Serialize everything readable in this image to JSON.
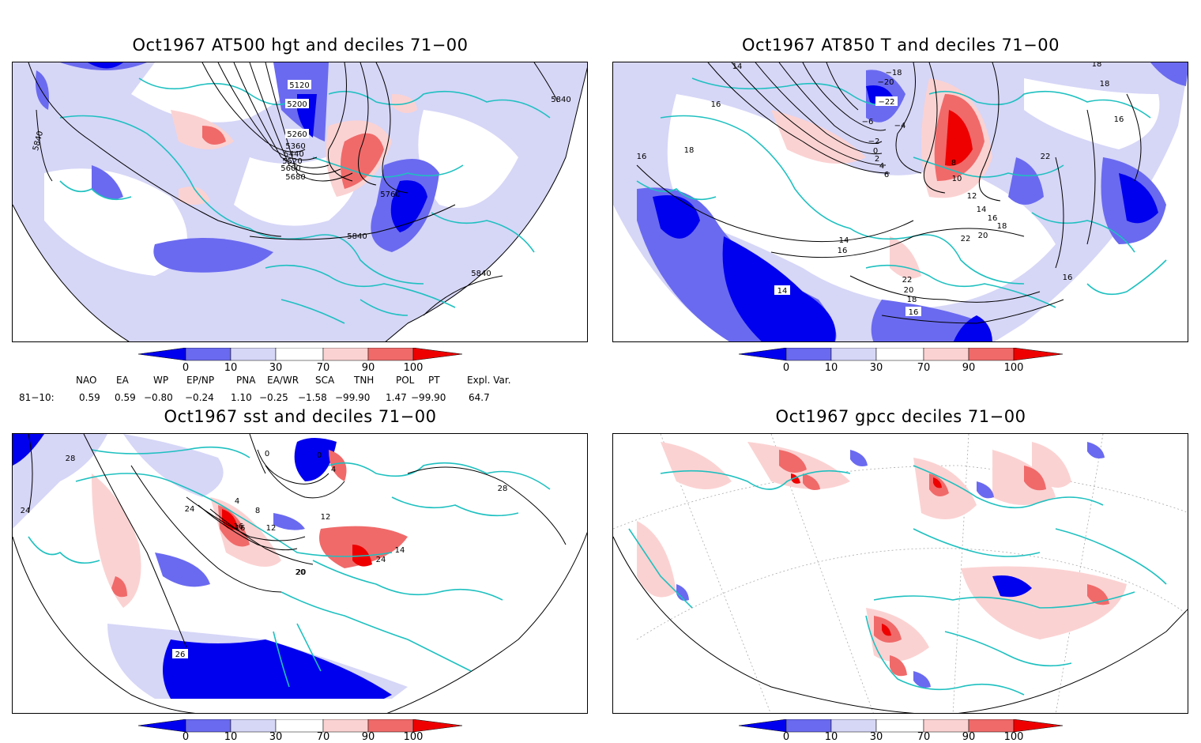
{
  "colors": {
    "deep_blue": "#0000ee",
    "mid_blue": "#6a6af0",
    "light_blue": "#d6d6f7",
    "light_red": "#fbd2d2",
    "mid_red": "#f06a6a",
    "deep_red": "#ee0000",
    "coast": "#1fc0c0"
  },
  "panels": [
    {
      "id": "p1",
      "title": "Oct1967 AT500 hgt and deciles 71−00",
      "contour_labels": [
        "5120",
        "5200",
        "5260",
        "5360",
        "5440",
        "5520",
        "5600",
        "5680",
        "5760",
        "5840",
        "5840",
        "5840",
        "5840"
      ]
    },
    {
      "id": "p2",
      "title": "Oct1967 AT850 T and deciles 71−00",
      "contour_labels": [
        "−18",
        "−20",
        "−22",
        "−6",
        "−4",
        "−2",
        "0",
        "2",
        "4",
        "6",
        "8",
        "10",
        "12",
        "14",
        "16",
        "18",
        "20",
        "22",
        "16",
        "18",
        "16",
        "14",
        "16",
        "22",
        "20",
        "18",
        "16",
        "14",
        "16",
        "18",
        "22",
        "14",
        "16",
        "18"
      ]
    },
    {
      "id": "p3",
      "title": "Oct1967 sst and deciles 71−00",
      "contour_labels": [
        "0",
        "4",
        "8",
        "12",
        "16",
        "20",
        "24",
        "28",
        "24",
        "26",
        "28",
        "12",
        "16",
        "20",
        "24",
        "14",
        "0",
        "4"
      ]
    },
    {
      "id": "p4",
      "title": "Oct1967 gpcc deciles 71−00",
      "contour_labels": []
    }
  ],
  "colorbar": {
    "ticks": [
      "0",
      "10",
      "30",
      "70",
      "90",
      "100"
    ]
  },
  "indices": {
    "headers": [
      "NAO",
      "EA",
      "WP",
      "EP/NP",
      "PNA",
      "EA/WR",
      "SCA",
      "TNH",
      "POL",
      "PT",
      "Expl. Var."
    ],
    "row_label": "81−10:",
    "values": [
      "0.59",
      "0.59",
      "−0.80",
      "−0.24",
      "1.10",
      "−0.25",
      "−1.58",
      "−99.90",
      "1.47",
      "−99.90",
      "64.7"
    ]
  }
}
